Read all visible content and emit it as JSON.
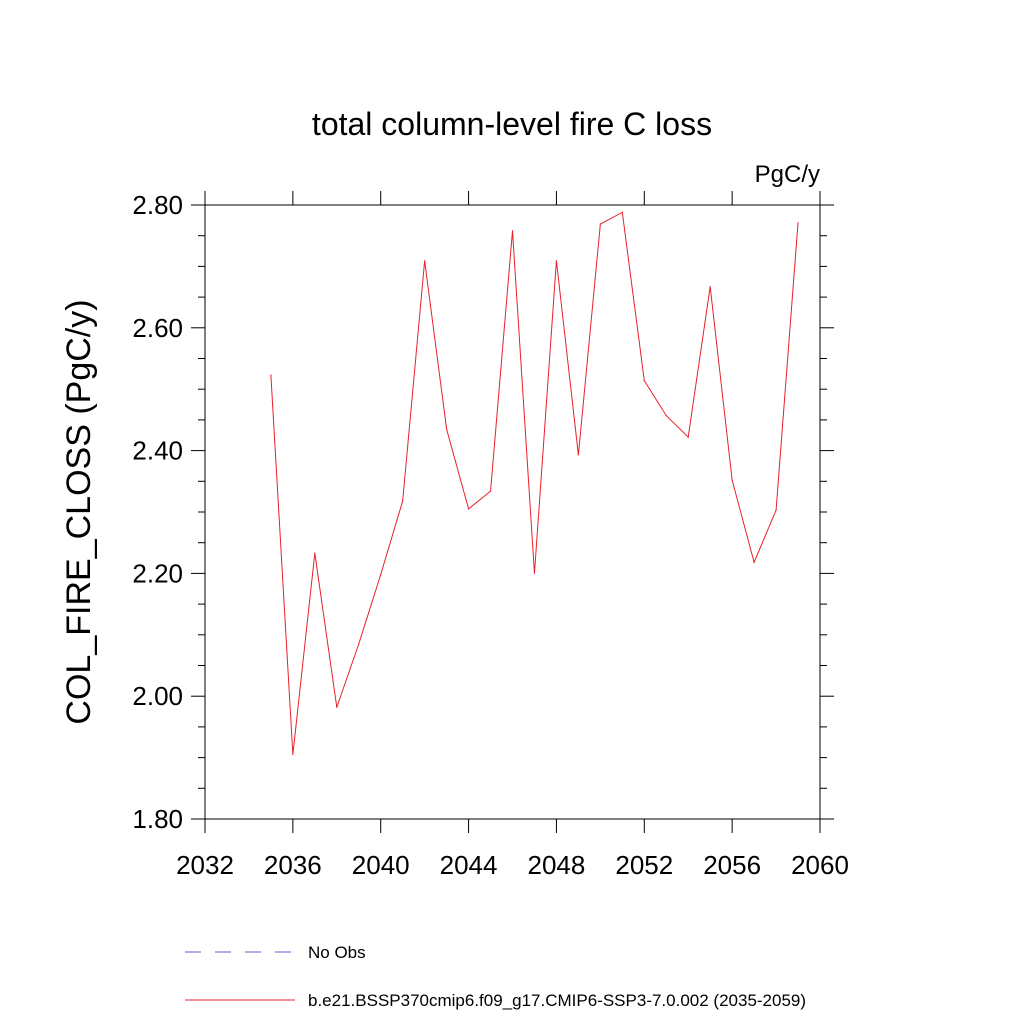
{
  "chart_data": {
    "type": "line",
    "title": "total column-level fire C loss",
    "units_label": "PgC/y",
    "ylabel": "COL_FIRE_CLOSS  (PgC/y)",
    "xlabel": "",
    "xlim": [
      2032,
      2060
    ],
    "ylim": [
      1.8,
      2.8
    ],
    "x_ticks": [
      2032,
      2036,
      2040,
      2044,
      2048,
      2052,
      2056,
      2060
    ],
    "x_tick_labels": [
      "2032",
      "2036",
      "2040",
      "2044",
      "2048",
      "2052",
      "2056",
      "2060"
    ],
    "y_ticks": [
      1.8,
      2.0,
      2.2,
      2.4,
      2.6,
      2.8
    ],
    "y_tick_labels": [
      "1.80",
      "2.00",
      "2.20",
      "2.40",
      "2.60",
      "2.80"
    ],
    "grid": false,
    "legend_position": "bottom",
    "series": [
      {
        "name": "No Obs",
        "color": "#6a5acd",
        "style": "dashed",
        "x": [],
        "y": []
      },
      {
        "name": "b.e21.BSSP370cmip6.f09_g17.CMIP6-SSP3-7.0.002 (2035-2059)",
        "color": "#e8202a",
        "style": "solid",
        "x": [
          2035,
          2036,
          2037,
          2038,
          2039,
          2040,
          2041,
          2042,
          2043,
          2044,
          2045,
          2046,
          2047,
          2048,
          2049,
          2050,
          2051,
          2052,
          2053,
          2054,
          2055,
          2056,
          2057,
          2058,
          2059
        ],
        "y": [
          2.523,
          1.905,
          2.233,
          1.982,
          2.085,
          2.198,
          2.318,
          2.709,
          2.435,
          2.305,
          2.334,
          2.758,
          2.2,
          2.709,
          2.393,
          2.769,
          2.788,
          2.514,
          2.457,
          2.422,
          2.667,
          2.352,
          2.218,
          2.303,
          2.771
        ]
      }
    ]
  }
}
